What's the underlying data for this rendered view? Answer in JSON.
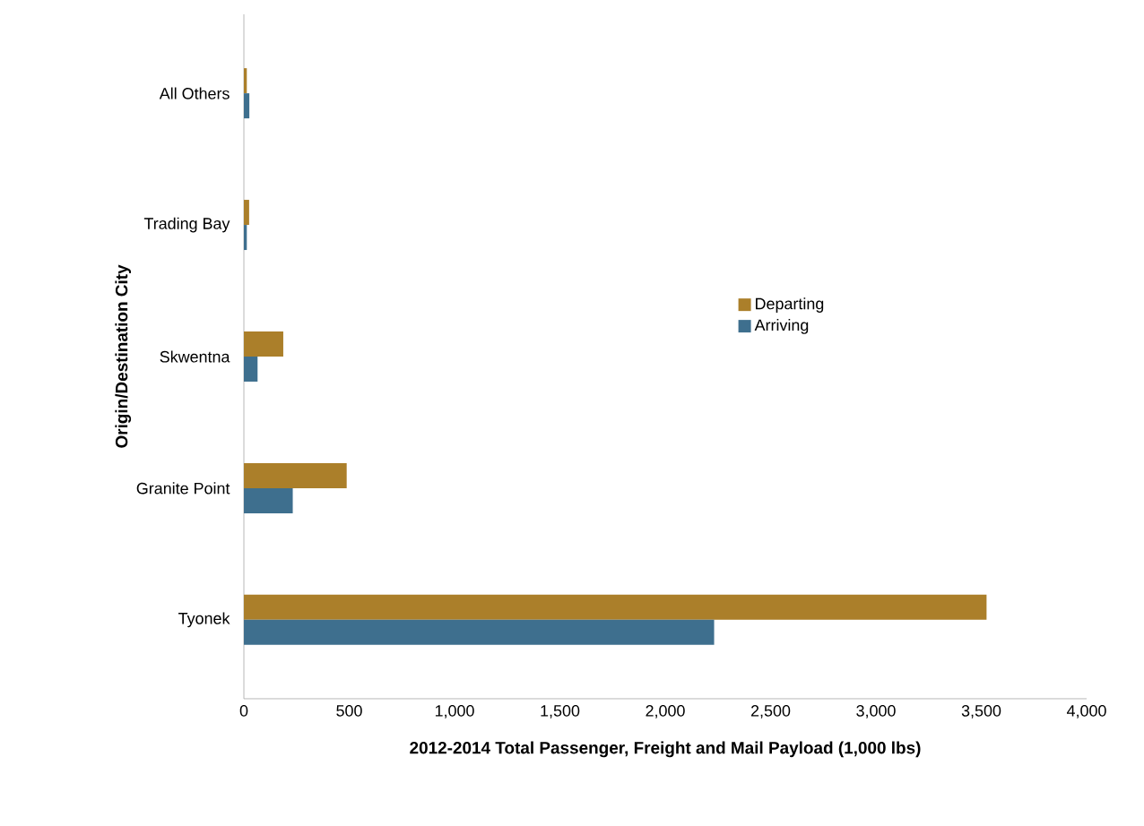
{
  "chart_data": {
    "type": "bar",
    "orientation": "horizontal",
    "xlabel": "2012-2014 Total Passenger, Freight and Mail Payload (1,000 lbs)",
    "ylabel": "Origin/Destination City",
    "categories": [
      "All Others",
      "Trading Bay",
      "Skwentna",
      "Granite Point",
      "Tyonek"
    ],
    "series": [
      {
        "name": "Departing",
        "color": "#ab7f2a",
        "values": [
          14,
          25,
          187,
          488,
          3525
        ]
      },
      {
        "name": "Arriving",
        "color": "#3e6f8e",
        "values": [
          26,
          14,
          65,
          232,
          2232
        ]
      }
    ],
    "xlim": [
      0,
      4000
    ],
    "xticks": [
      0,
      500,
      {
        "value": 1000,
        "label": "1,000"
      },
      {
        "value": 1500,
        "label": "1,500"
      },
      {
        "value": 2000,
        "label": "2,000"
      },
      {
        "value": 2500,
        "label": "2,500"
      },
      {
        "value": 3000,
        "label": "3,000"
      },
      {
        "value": 3500,
        "label": "3,500"
      },
      {
        "value": 4000,
        "label": "4,000"
      }
    ],
    "legend": "right",
    "grid": false
  }
}
